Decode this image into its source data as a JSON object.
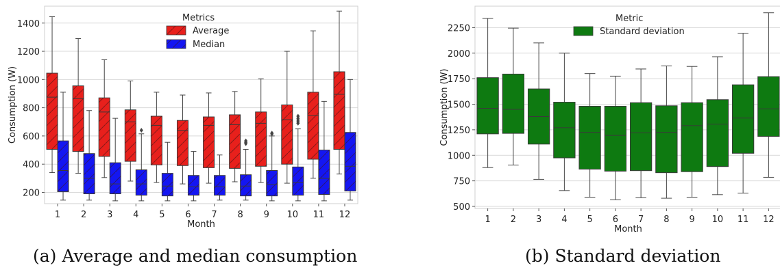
{
  "chart_data": [
    {
      "type": "boxplot",
      "caption": "(a) Average and median consumption",
      "xlabel": "Month",
      "ylabel": "Consumption (W)",
      "ylim": [
        120,
        1520
      ],
      "yticks": [
        200,
        400,
        600,
        800,
        1000,
        1200,
        1400
      ],
      "categories": [
        "1",
        "2",
        "3",
        "4",
        "5",
        "6",
        "7",
        "8",
        "9",
        "10",
        "11",
        "12"
      ],
      "grid": "horizontal",
      "legend": {
        "title": "Metrics",
        "placement": "top-center"
      },
      "series": [
        {
          "name": "Average",
          "color": "#e8201c",
          "hatch": "diagonal",
          "boxes": [
            {
              "whislo": 340,
              "q1": 505,
              "med": 875,
              "q3": 1045,
              "whishi": 1445,
              "outliers": []
            },
            {
              "whislo": 335,
              "q1": 490,
              "med": 865,
              "q3": 955,
              "whishi": 1290,
              "outliers": []
            },
            {
              "whislo": 305,
              "q1": 455,
              "med": 770,
              "q3": 870,
              "whishi": 1140,
              "outliers": []
            },
            {
              "whislo": 280,
              "q1": 420,
              "med": 700,
              "q3": 785,
              "whishi": 990,
              "outliers": []
            },
            {
              "whislo": 270,
              "q1": 395,
              "med": 675,
              "q3": 740,
              "whishi": 910,
              "outliers": []
            },
            {
              "whislo": 260,
              "q1": 390,
              "med": 640,
              "q3": 710,
              "whishi": 890,
              "outliers": []
            },
            {
              "whislo": 265,
              "q1": 375,
              "med": 675,
              "q3": 735,
              "whishi": 905,
              "outliers": []
            },
            {
              "whislo": 275,
              "q1": 370,
              "med": 680,
              "q3": 750,
              "whishi": 915,
              "outliers": []
            },
            {
              "whislo": 270,
              "q1": 385,
              "med": 690,
              "q3": 770,
              "whishi": 1005,
              "outliers": []
            },
            {
              "whislo": 265,
              "q1": 400,
              "med": 715,
              "q3": 820,
              "whishi": 1200,
              "outliers": []
            },
            {
              "whislo": 300,
              "q1": 435,
              "med": 745,
              "q3": 910,
              "whishi": 1345,
              "outliers": []
            },
            {
              "whislo": 330,
              "q1": 505,
              "med": 895,
              "q3": 1055,
              "whishi": 1485,
              "outliers": []
            }
          ]
        },
        {
          "name": "Median",
          "color": "#1416f2",
          "hatch": "diagonal",
          "boxes": [
            {
              "whislo": 145,
              "q1": 205,
              "med": 355,
              "q3": 565,
              "whishi": 910,
              "outliers": []
            },
            {
              "whislo": 145,
              "q1": 190,
              "med": 300,
              "q3": 475,
              "whishi": 780,
              "outliers": []
            },
            {
              "whislo": 140,
              "q1": 190,
              "med": 260,
              "q3": 410,
              "whishi": 725,
              "outliers": []
            },
            {
              "whislo": 140,
              "q1": 180,
              "med": 260,
              "q3": 360,
              "whishi": 615,
              "outliers": [
                640
              ]
            },
            {
              "whislo": 140,
              "q1": 175,
              "med": 245,
              "q3": 335,
              "whishi": 555,
              "outliers": []
            },
            {
              "whislo": 140,
              "q1": 180,
              "med": 240,
              "q3": 320,
              "whishi": 490,
              "outliers": []
            },
            {
              "whislo": 145,
              "q1": 180,
              "med": 240,
              "q3": 320,
              "whishi": 465,
              "outliers": []
            },
            {
              "whislo": 145,
              "q1": 175,
              "med": 245,
              "q3": 325,
              "whishi": 505,
              "outliers": [
                545,
                555,
                565
              ]
            },
            {
              "whislo": 140,
              "q1": 175,
              "med": 255,
              "q3": 355,
              "whishi": 600,
              "outliers": [
                615,
                620
              ]
            },
            {
              "whislo": 140,
              "q1": 180,
              "med": 270,
              "q3": 380,
              "whishi": 650,
              "outliers": [
                690,
                700,
                712,
                725,
                740
              ]
            },
            {
              "whislo": 140,
              "q1": 185,
              "med": 300,
              "q3": 500,
              "whishi": 845,
              "outliers": []
            },
            {
              "whislo": 145,
              "q1": 210,
              "med": 385,
              "q3": 625,
              "whishi": 1000,
              "outliers": []
            }
          ]
        }
      ]
    },
    {
      "type": "boxplot",
      "caption": "(b) Standard deviation",
      "xlabel": "Month",
      "ylabel": "Consumption (W)",
      "ylim": [
        480,
        2460
      ],
      "yticks": [
        500,
        750,
        1000,
        1250,
        1500,
        1750,
        2000,
        2250
      ],
      "categories": [
        "1",
        "2",
        "3",
        "4",
        "5",
        "6",
        "7",
        "8",
        "9",
        "10",
        "11",
        "12"
      ],
      "grid": "horizontal",
      "legend": {
        "title": "Metric",
        "placement": "top-center"
      },
      "series": [
        {
          "name": "Standard deviation",
          "color": "#0e7a11",
          "hatch": "none",
          "boxes": [
            {
              "whislo": 880,
              "q1": 1210,
              "med": 1460,
              "q3": 1760,
              "whishi": 2340,
              "outliers": []
            },
            {
              "whislo": 905,
              "q1": 1215,
              "med": 1450,
              "q3": 1795,
              "whishi": 2245,
              "outliers": []
            },
            {
              "whislo": 765,
              "q1": 1110,
              "med": 1380,
              "q3": 1650,
              "whishi": 2100,
              "outliers": []
            },
            {
              "whislo": 655,
              "q1": 975,
              "med": 1270,
              "q3": 1520,
              "whishi": 2000,
              "outliers": []
            },
            {
              "whislo": 590,
              "q1": 865,
              "med": 1225,
              "q3": 1480,
              "whishi": 1800,
              "outliers": []
            },
            {
              "whislo": 565,
              "q1": 845,
              "med": 1195,
              "q3": 1480,
              "whishi": 1775,
              "outliers": []
            },
            {
              "whislo": 585,
              "q1": 850,
              "med": 1220,
              "q3": 1515,
              "whishi": 1845,
              "outliers": []
            },
            {
              "whislo": 580,
              "q1": 830,
              "med": 1225,
              "q3": 1485,
              "whishi": 1875,
              "outliers": []
            },
            {
              "whislo": 590,
              "q1": 840,
              "med": 1290,
              "q3": 1515,
              "whishi": 1870,
              "outliers": []
            },
            {
              "whislo": 615,
              "q1": 890,
              "med": 1305,
              "q3": 1545,
              "whishi": 1965,
              "outliers": []
            },
            {
              "whislo": 630,
              "q1": 1020,
              "med": 1365,
              "q3": 1690,
              "whishi": 2195,
              "outliers": []
            },
            {
              "whislo": 785,
              "q1": 1185,
              "med": 1455,
              "q3": 1770,
              "whishi": 2395,
              "outliers": []
            }
          ]
        }
      ]
    }
  ]
}
